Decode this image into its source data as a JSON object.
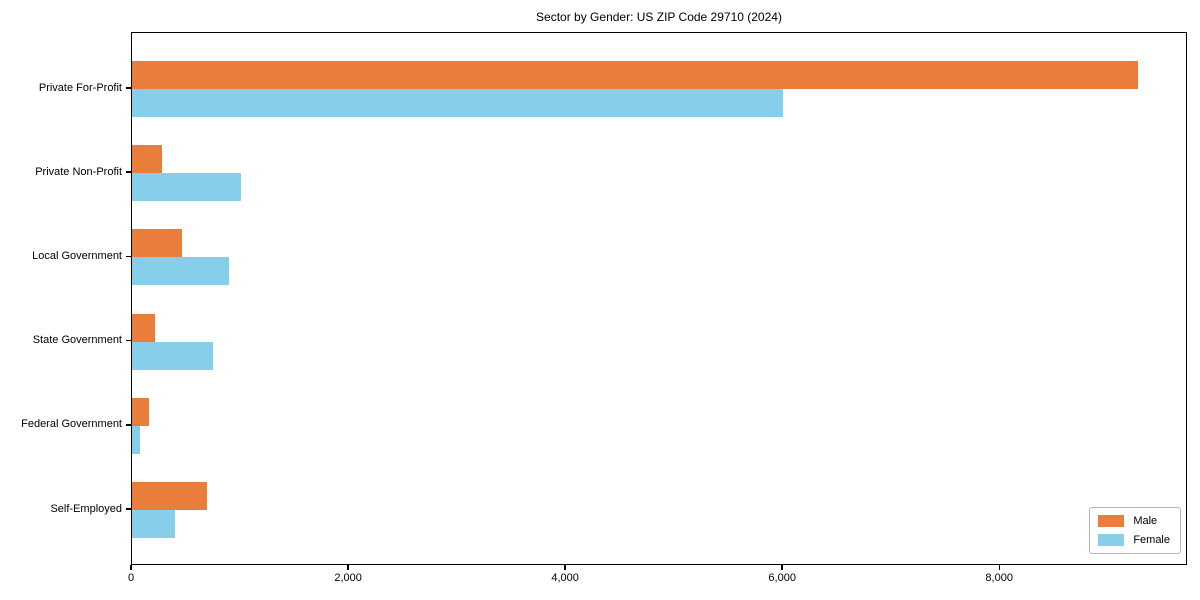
{
  "chart_data": {
    "type": "bar",
    "orientation": "horizontal",
    "title": "Sector by Gender: US ZIP Code 29710 (2024)",
    "categories": [
      "Private For-Profit",
      "Private Non-Profit",
      "Local Government",
      "State Government",
      "Federal Government",
      "Self-Employed"
    ],
    "series": [
      {
        "name": "Male",
        "color": "#e87d3c",
        "values": [
          9270,
          280,
          460,
          210,
          160,
          690
        ]
      },
      {
        "name": "Female",
        "color": "#87ceeb",
        "values": [
          6000,
          1000,
          890,
          750,
          75,
          400
        ]
      }
    ],
    "xlabel": "",
    "ylabel": "",
    "xlim": [
      0,
      9730
    ],
    "xticks": [
      0,
      2000,
      4000,
      6000,
      8000
    ],
    "xtick_labels": [
      "0",
      "2,000",
      "4,000",
      "6,000",
      "8,000"
    ],
    "grid": false,
    "legend_position": "lower-right",
    "colors": {
      "male": "#e87d3c",
      "female": "#87ceeb",
      "spine": "#000000",
      "background": "#ffffff"
    }
  }
}
